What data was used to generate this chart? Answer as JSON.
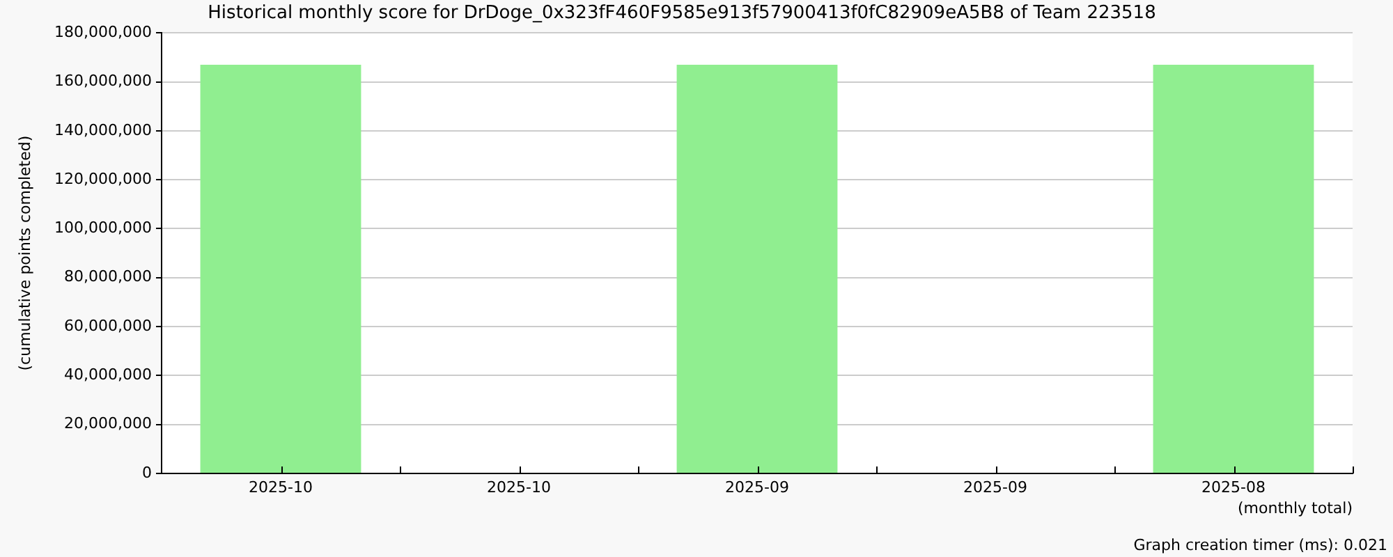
{
  "chart_data": {
    "type": "bar",
    "title": "Historical monthly score for DrDoge_0x323fF460F9585e913f57900413f0fC82909eA5B8 of Team 223518",
    "xlabel": "(monthly total)",
    "ylabel": "(cumulative points completed)",
    "categories": [
      "2025-10",
      "2025-10",
      "2025-09",
      "2025-09",
      "2025-08"
    ],
    "values": [
      167000000,
      null,
      167000000,
      null,
      167000000
    ],
    "color": "#90ee90",
    "ylim": [
      0,
      180000000
    ],
    "yticks": [
      {
        "value": 0,
        "label": "0"
      },
      {
        "value": 20000000,
        "label": "20,000,000"
      },
      {
        "value": 40000000,
        "label": "40,000,000"
      },
      {
        "value": 60000000,
        "label": "60,000,000"
      },
      {
        "value": 80000000,
        "label": "80,000,000"
      },
      {
        "value": 100000000,
        "label": "100,000,000"
      },
      {
        "value": 120000000,
        "label": "120,000,000"
      },
      {
        "value": 140000000,
        "label": "140,000,000"
      },
      {
        "value": 160000000,
        "label": "160,000,000"
      },
      {
        "value": 180000000,
        "label": "180,000,000"
      }
    ],
    "grid": "y",
    "legend": false,
    "annotations": [
      "Graph creation timer (ms): 0.021"
    ]
  }
}
